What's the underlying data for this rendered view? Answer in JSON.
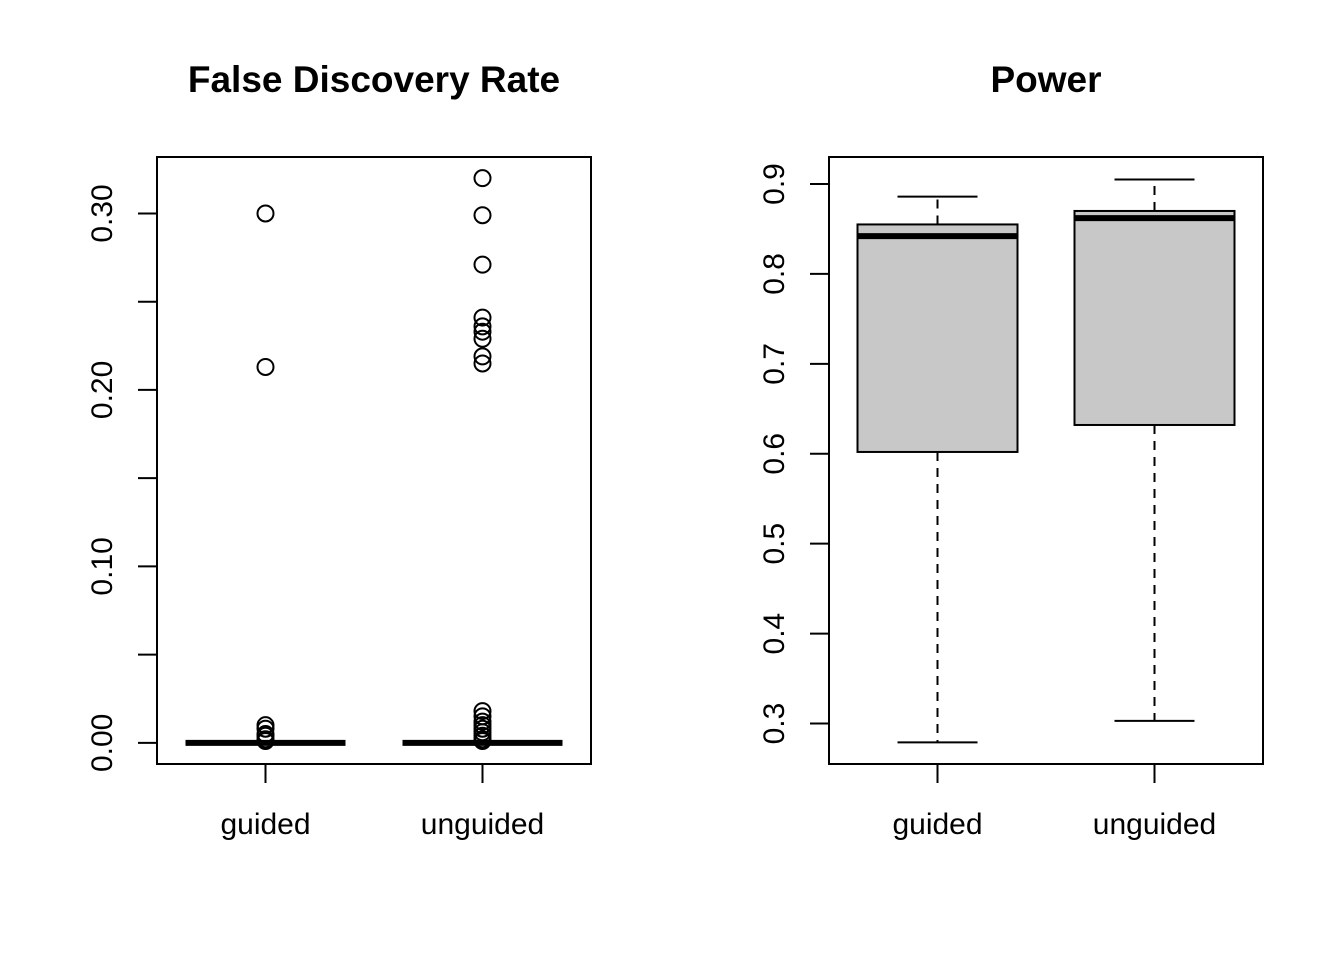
{
  "chart_data": [
    {
      "type": "box",
      "title": "False Discovery Rate",
      "xlabel": "",
      "ylabel": "",
      "ylim": [
        -0.012,
        0.332
      ],
      "yticks": [
        0.0,
        0.05,
        0.1,
        0.15,
        0.2,
        0.25,
        0.3
      ],
      "yticklabels": [
        "0.00",
        "",
        "0.10",
        "",
        "0.20",
        "",
        "0.30"
      ],
      "categories": [
        "guided",
        "unguided"
      ],
      "boxes": [
        {
          "category": "guided",
          "whisker_low": 0.0,
          "q1": 0.0,
          "median": 0.0,
          "q3": 0.0,
          "whisker_high": 0.0,
          "outliers": [
            0.3,
            0.213,
            0.01,
            0.008,
            0.005,
            0.004,
            0.002,
            0.001
          ]
        },
        {
          "category": "unguided",
          "whisker_low": 0.0,
          "q1": 0.0,
          "median": 0.0,
          "q3": 0.0,
          "whisker_high": 0.0,
          "outliers": [
            0.32,
            0.299,
            0.271,
            0.241,
            0.236,
            0.233,
            0.229,
            0.219,
            0.215,
            0.018,
            0.015,
            0.012,
            0.01,
            0.008,
            0.006,
            0.004,
            0.002,
            0.001
          ]
        }
      ]
    },
    {
      "type": "box",
      "title": "Power",
      "xlabel": "",
      "ylabel": "",
      "ylim": [
        0.255,
        0.93
      ],
      "yticks": [
        0.3,
        0.4,
        0.5,
        0.6,
        0.7,
        0.8,
        0.9
      ],
      "yticklabels": [
        "0.3",
        "0.4",
        "0.5",
        "0.6",
        "0.7",
        "0.8",
        "0.9"
      ],
      "categories": [
        "guided",
        "unguided"
      ],
      "boxes": [
        {
          "category": "guided",
          "whisker_low": 0.279,
          "q1": 0.602,
          "median": 0.842,
          "q3": 0.855,
          "whisker_high": 0.886,
          "outliers": []
        },
        {
          "category": "unguided",
          "whisker_low": 0.303,
          "q1": 0.632,
          "median": 0.862,
          "q3": 0.87,
          "whisker_high": 0.905,
          "outliers": []
        }
      ]
    }
  ]
}
